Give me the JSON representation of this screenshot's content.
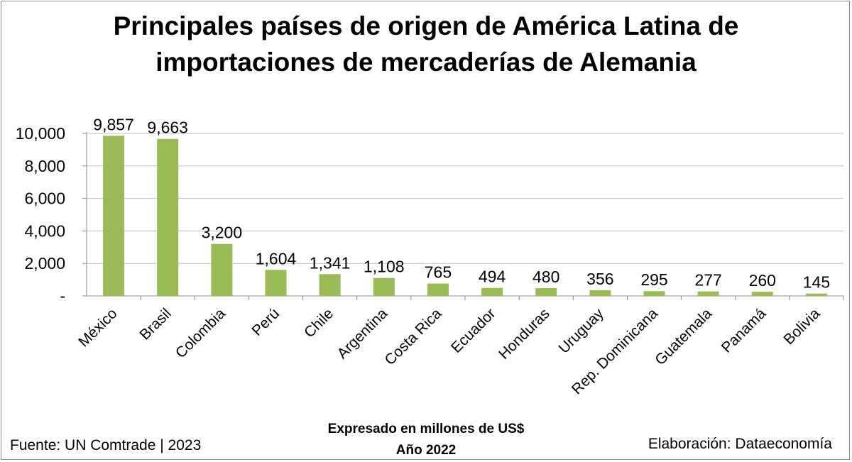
{
  "title_line1": "Principales países de origen de América Latina de",
  "title_line2": "importaciones de mercaderías de Alemania",
  "footer": {
    "source": "Fuente: UN Comtrade | 2023",
    "credit": "Elaboración: Dataeconomía",
    "note_line1": "Expresado en millones de US$",
    "note_line2": "Año 2022"
  },
  "colors": {
    "bar": "#9bbb59",
    "grid": "#bfbfbf",
    "axis": "#8c8c8c"
  },
  "chart_data": {
    "type": "bar",
    "title": "Principales países de origen de América Latina de importaciones de mercaderías de Alemania",
    "categories": [
      "México",
      "Brasil",
      "Colombia",
      "Perú",
      "Chile",
      "Argentina",
      "Costa Rica",
      "Ecuador",
      "Honduras",
      "Uruguay",
      "Rep. Dominicana",
      "Guatemala",
      "Panamá",
      "Bolivia"
    ],
    "values": [
      9857,
      9663,
      3200,
      1604,
      1341,
      1108,
      765,
      494,
      480,
      356,
      295,
      277,
      260,
      145
    ],
    "value_labels": [
      "9,857",
      "9,663",
      "3,200",
      "1,604",
      "1,341",
      "1,108",
      "765",
      "494",
      "480",
      "356",
      "295",
      "277",
      "260",
      "145"
    ],
    "ylim": [
      0,
      10000
    ],
    "yticks": [
      0,
      2000,
      4000,
      6000,
      8000,
      10000
    ],
    "ytick_labels": [
      "-",
      "2,000",
      "4,000",
      "6,000",
      "8,000",
      "10,000"
    ],
    "xlabel": "",
    "ylabel": "",
    "grid": true,
    "legend": "none"
  }
}
